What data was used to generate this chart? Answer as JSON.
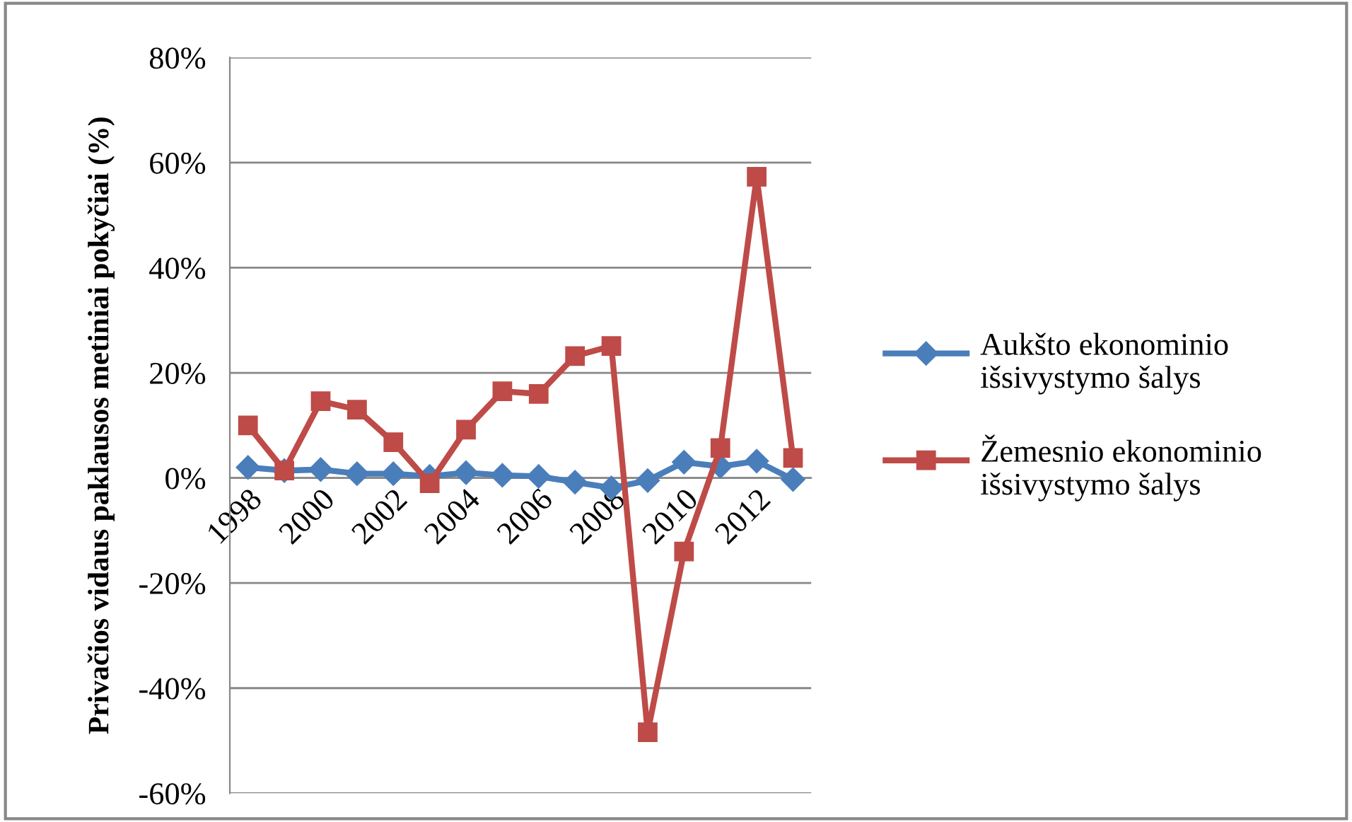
{
  "chart_data": {
    "type": "line",
    "ylabel": "Privačios vidaus paklausos metiniai pokyčiai (%)",
    "categories": [
      "1998",
      null,
      "2000",
      null,
      "2002",
      null,
      "2004",
      null,
      "2006",
      null,
      "2008",
      null,
      "2010",
      null,
      "2012",
      null
    ],
    "series": [
      {
        "name": "Aukšto ekonominio išsivystymo šalys",
        "color": "#4a7ebb",
        "marker": "diamond",
        "values": [
          2,
          1.4,
          1.6,
          0.8,
          0.8,
          0.3,
          1,
          0.5,
          0.3,
          -0.8,
          -1.9,
          -0.5,
          3,
          2.2,
          3.2,
          -0.3
        ]
      },
      {
        "name": "Žemesnio ekonominio išsivystymo šalys",
        "color": "#be4b48",
        "marker": "square",
        "values": [
          10,
          1.4,
          14.6,
          13,
          6.8,
          -1,
          9.2,
          16.5,
          16,
          23.2,
          25.1,
          -48.4,
          -14,
          5.7,
          57.3,
          3.8
        ]
      }
    ],
    "ylim": [
      -60,
      80
    ],
    "yticks": [
      {
        "value": -60,
        "label": "-60%"
      },
      {
        "value": -40,
        "label": "-40%"
      },
      {
        "value": -20,
        "label": "-20%"
      },
      {
        "value": 0,
        "label": "0%"
      },
      {
        "value": 20,
        "label": "20%"
      },
      {
        "value": 40,
        "label": "40%"
      },
      {
        "value": 60,
        "label": "60%"
      },
      {
        "value": 80,
        "label": "80%"
      }
    ],
    "grid": "y",
    "legend": "right",
    "line_style": "solid"
  }
}
